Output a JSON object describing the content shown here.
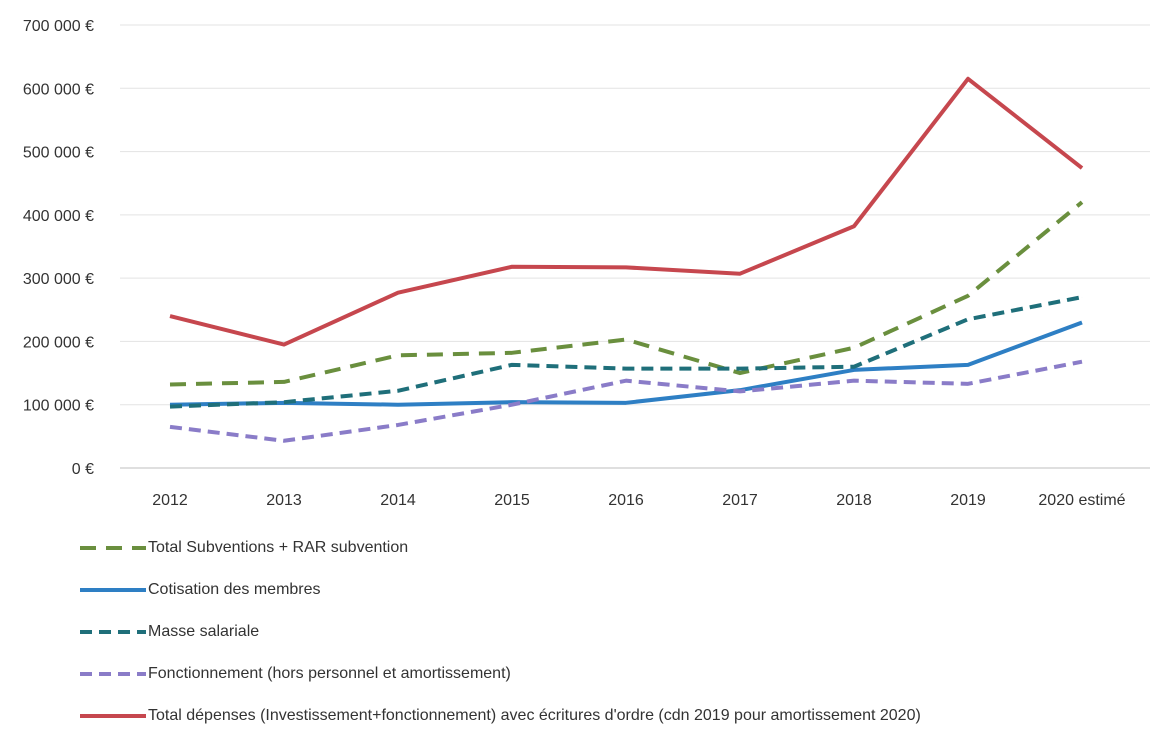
{
  "chart_data": {
    "type": "line",
    "title": "",
    "xlabel": "",
    "ylabel": "",
    "categories": [
      "2012",
      "2013",
      "2014",
      "2015",
      "2016",
      "2017",
      "2018",
      "2019",
      "2020 estimé"
    ],
    "ylim": [
      0,
      700000
    ],
    "y_ticks": [
      {
        "value": 0,
        "label": "0 €"
      },
      {
        "value": 100000,
        "label": "100 000 €"
      },
      {
        "value": 200000,
        "label": "200 000 €"
      },
      {
        "value": 300000,
        "label": "300 000 €"
      },
      {
        "value": 400000,
        "label": "400 000 €"
      },
      {
        "value": 500000,
        "label": "500 000 €"
      },
      {
        "value": 600000,
        "label": "600 000 €"
      },
      {
        "value": 700000,
        "label": "700 000 €"
      }
    ],
    "grid": true,
    "legend_position": "bottom",
    "series": [
      {
        "name": "Total Subventions + RAR subvention",
        "color": "#6a8f3e",
        "dash": "long-dash",
        "values": [
          132000,
          136000,
          178000,
          182000,
          203000,
          150000,
          190000,
          272000,
          420000
        ]
      },
      {
        "name": "Cotisation des membres",
        "color": "#2e7fc4",
        "dash": "solid",
        "values": [
          100000,
          103000,
          100000,
          104000,
          103000,
          123000,
          155000,
          163000,
          230000
        ]
      },
      {
        "name": "Masse salariale",
        "color": "#1f6f7a",
        "dash": "dash",
        "values": [
          97000,
          104000,
          122000,
          163000,
          157000,
          157000,
          160000,
          235000,
          270000
        ]
      },
      {
        "name": "Fonctionnement (hors personnel et amortissement)",
        "color": "#8a7cc8",
        "dash": "dash",
        "values": [
          65000,
          43000,
          68000,
          100000,
          138000,
          121000,
          138000,
          133000,
          168000
        ]
      },
      {
        "name": "Total dépenses (Investissement+fonctionnement) avec écritures d'ordre (cdn 2019 pour amortissement 2020)",
        "color": "#c6474e",
        "dash": "solid",
        "values": [
          240000,
          195000,
          277000,
          318000,
          317000,
          307000,
          382000,
          615000,
          474000
        ]
      }
    ]
  }
}
